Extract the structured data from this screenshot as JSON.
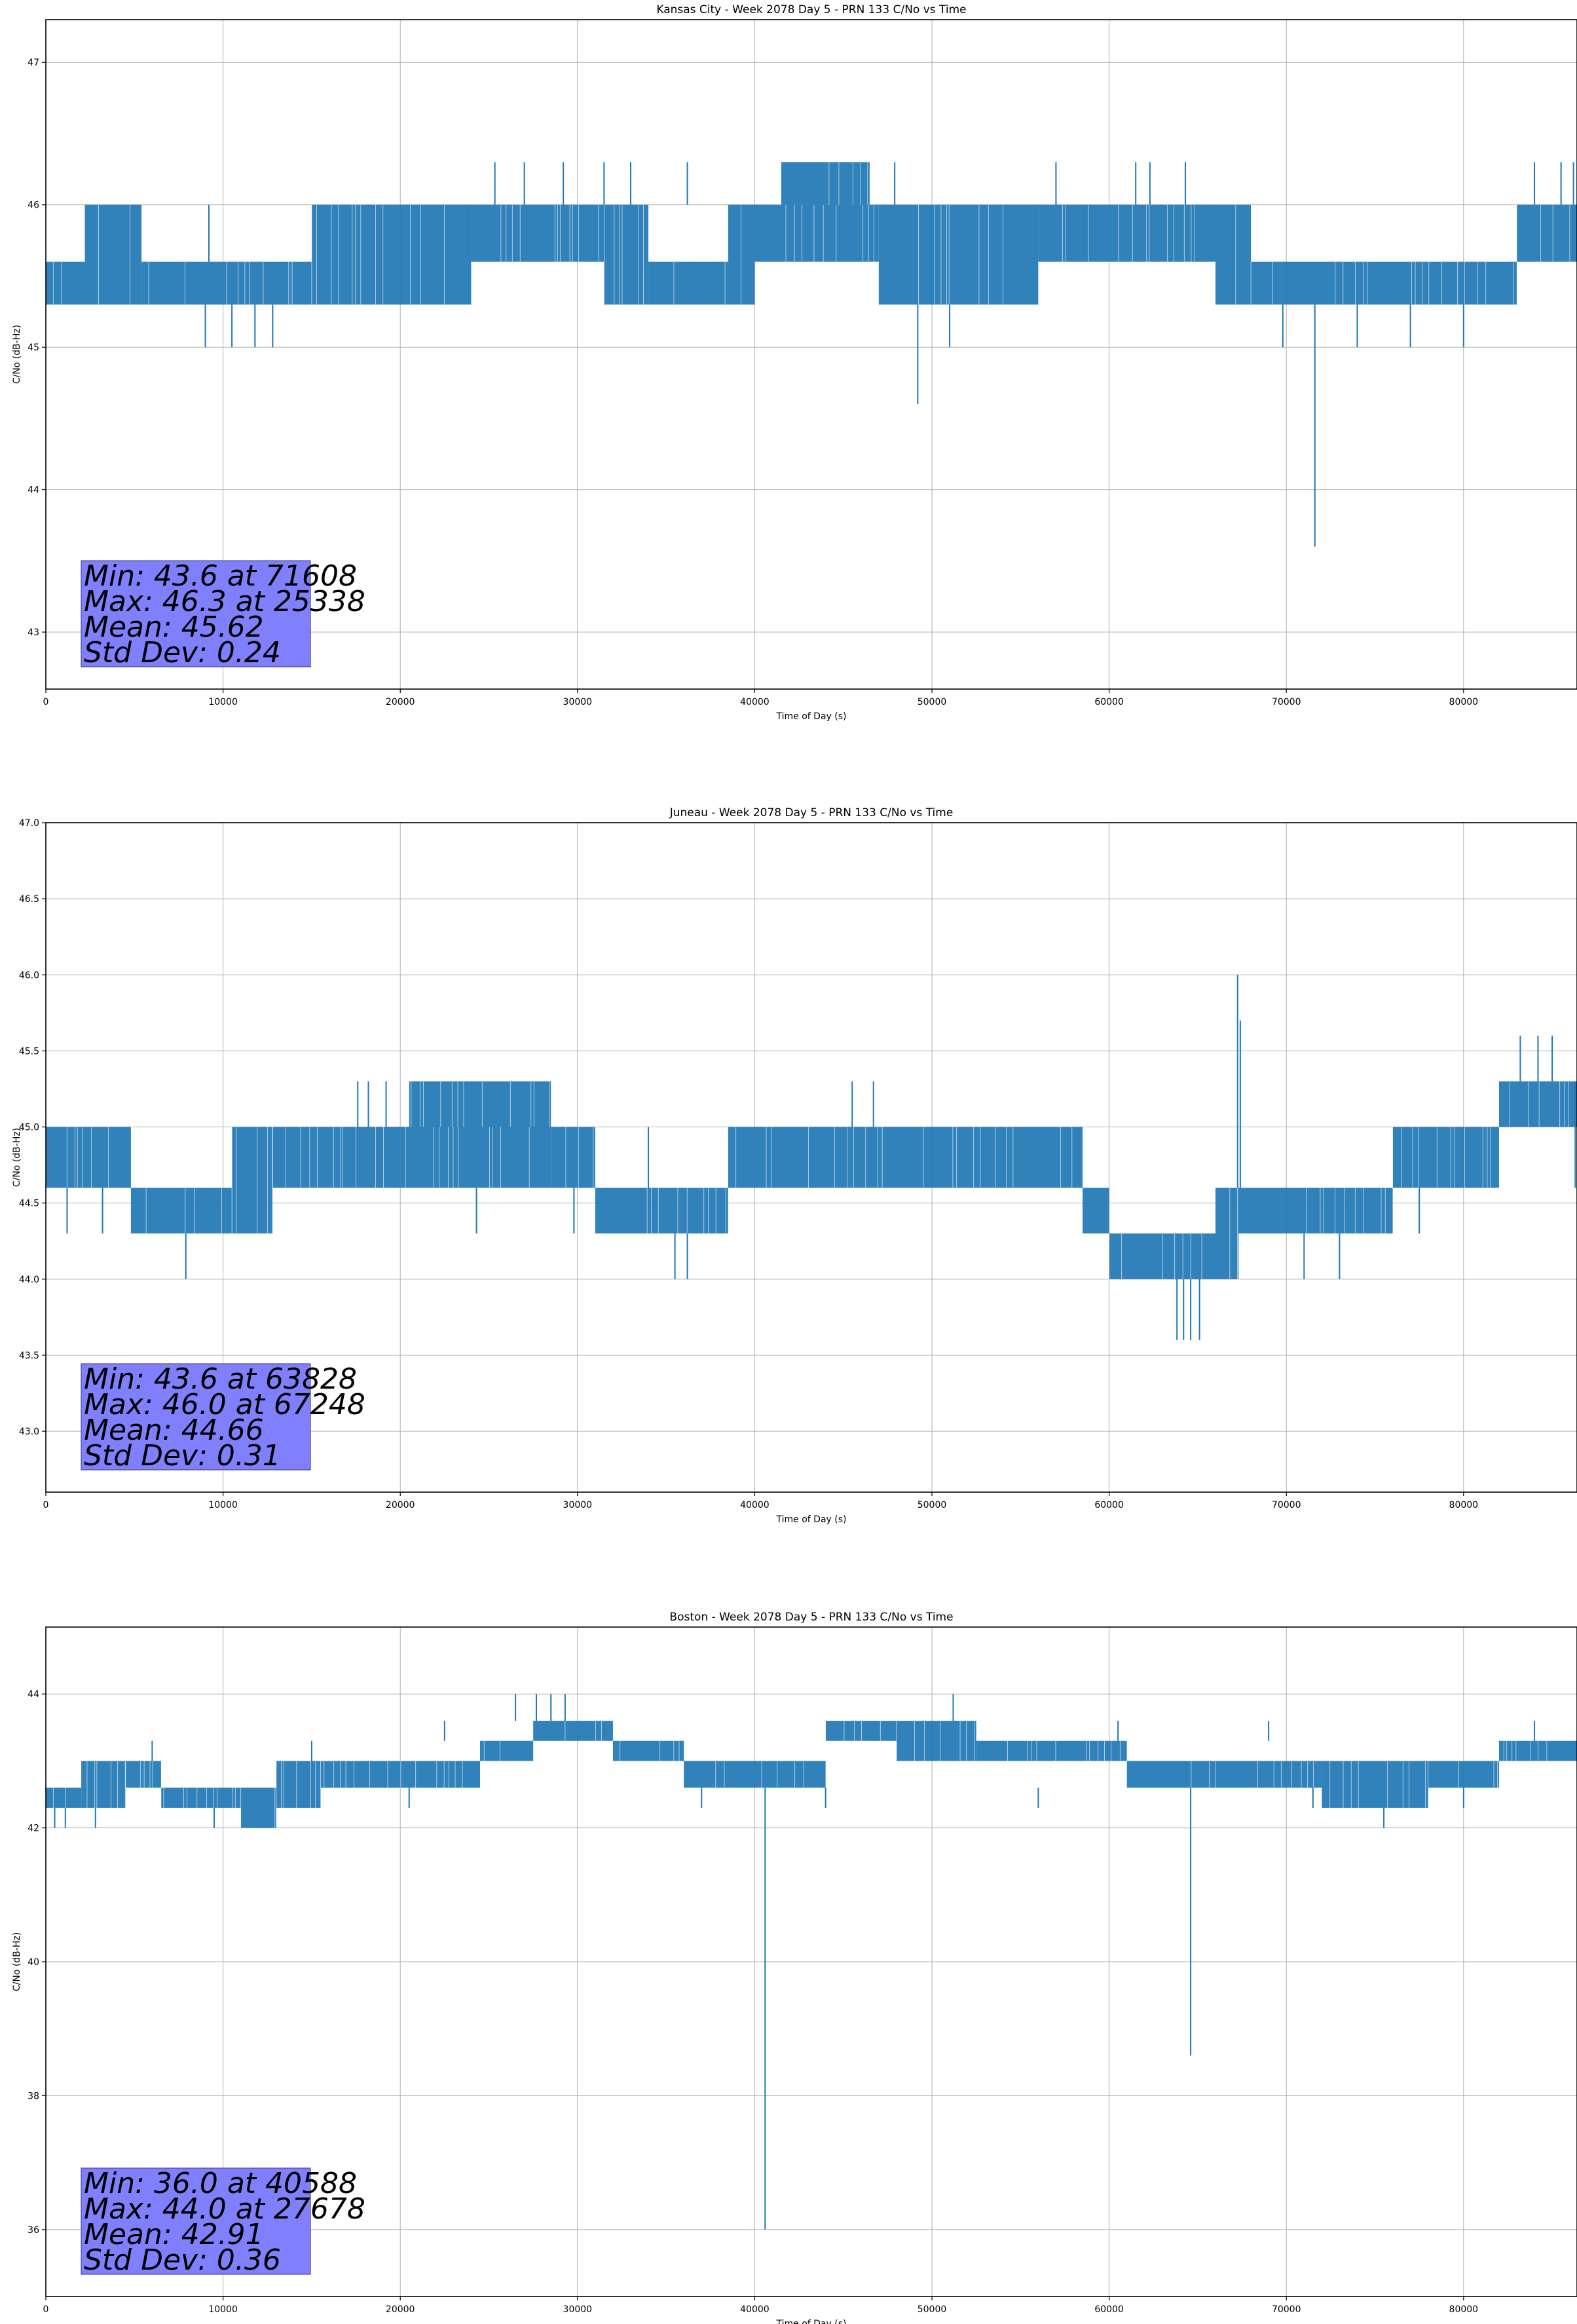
{
  "chart_data": [
    {
      "type": "line",
      "title": "Kansas City - Week 2078 Day 5 - PRN 133 C/No vs Time",
      "xlabel": "Time of Day (s)",
      "ylabel": "C/No (dB-Hz)",
      "xlim": [
        0,
        86400
      ],
      "ylim": [
        42.6,
        47.3
      ],
      "xticks": [
        "0",
        "10000",
        "20000",
        "30000",
        "40000",
        "50000",
        "60000",
        "70000",
        "80000"
      ],
      "yticks": [
        "43",
        "44",
        "45",
        "46",
        "47"
      ],
      "grid": true,
      "color": "#1f77b4",
      "stats": [
        "Min: 43.6 at 71608",
        "Max: 46.3 at 25338",
        "Mean: 45.62",
        "Std Dev: 0.24"
      ],
      "segments": [
        {
          "x0": 0,
          "x1": 2200,
          "lo": 45.3,
          "hi": 45.6
        },
        {
          "x0": 2200,
          "x1": 5400,
          "lo": 45.3,
          "hi": 46.0
        },
        {
          "x0": 5400,
          "x1": 15000,
          "lo": 45.3,
          "hi": 45.6
        },
        {
          "x0": 15000,
          "x1": 24000,
          "lo": 45.3,
          "hi": 46.0
        },
        {
          "x0": 24000,
          "x1": 31500,
          "lo": 45.6,
          "hi": 46.0
        },
        {
          "x0": 31500,
          "x1": 34000,
          "lo": 45.3,
          "hi": 46.0
        },
        {
          "x0": 34000,
          "x1": 38500,
          "lo": 45.3,
          "hi": 45.6
        },
        {
          "x0": 38500,
          "x1": 40000,
          "lo": 45.3,
          "hi": 46.0
        },
        {
          "x0": 40000,
          "x1": 47000,
          "lo": 45.6,
          "hi": 46.0
        },
        {
          "x0": 41500,
          "x1": 46500,
          "lo": 46.0,
          "hi": 46.3
        },
        {
          "x0": 47000,
          "x1": 50000,
          "lo": 45.3,
          "hi": 46.0
        },
        {
          "x0": 50000,
          "x1": 56000,
          "lo": 45.3,
          "hi": 46.0
        },
        {
          "x0": 56000,
          "x1": 66000,
          "lo": 45.6,
          "hi": 46.0
        },
        {
          "x0": 66000,
          "x1": 68000,
          "lo": 45.3,
          "hi": 46.0
        },
        {
          "x0": 68000,
          "x1": 75000,
          "lo": 45.3,
          "hi": 45.6
        },
        {
          "x0": 75000,
          "x1": 83000,
          "lo": 45.3,
          "hi": 45.6
        },
        {
          "x0": 83000,
          "x1": 86400,
          "lo": 45.6,
          "hi": 46.0
        }
      ],
      "spikes": [
        {
          "x": 9200,
          "lo": 45.6,
          "hi": 46.0
        },
        {
          "x": 9000,
          "lo": 45.0,
          "hi": 45.3
        },
        {
          "x": 10500,
          "lo": 45.0,
          "hi": 45.3
        },
        {
          "x": 11800,
          "lo": 45.0,
          "hi": 45.3
        },
        {
          "x": 12800,
          "lo": 45.0,
          "hi": 45.3
        },
        {
          "x": 25338,
          "lo": 46.0,
          "hi": 46.3
        },
        {
          "x": 27000,
          "lo": 46.0,
          "hi": 46.3
        },
        {
          "x": 29200,
          "lo": 46.0,
          "hi": 46.3
        },
        {
          "x": 31500,
          "lo": 46.0,
          "hi": 46.3
        },
        {
          "x": 33000,
          "lo": 46.0,
          "hi": 46.3
        },
        {
          "x": 36200,
          "lo": 46.0,
          "hi": 46.3
        },
        {
          "x": 47900,
          "lo": 46.0,
          "hi": 46.3
        },
        {
          "x": 49200,
          "lo": 44.6,
          "hi": 45.3
        },
        {
          "x": 51000,
          "lo": 45.0,
          "hi": 45.3
        },
        {
          "x": 57000,
          "lo": 46.0,
          "hi": 46.3
        },
        {
          "x": 61500,
          "lo": 46.0,
          "hi": 46.3
        },
        {
          "x": 62300,
          "lo": 46.0,
          "hi": 46.3
        },
        {
          "x": 64300,
          "lo": 46.0,
          "hi": 46.3
        },
        {
          "x": 69800,
          "lo": 45.0,
          "hi": 45.3
        },
        {
          "x": 71608,
          "lo": 43.6,
          "hi": 45.3
        },
        {
          "x": 74000,
          "lo": 45.0,
          "hi": 45.3
        },
        {
          "x": 77000,
          "lo": 45.0,
          "hi": 45.3
        },
        {
          "x": 80000,
          "lo": 45.0,
          "hi": 45.3
        },
        {
          "x": 84000,
          "lo": 46.0,
          "hi": 46.3
        },
        {
          "x": 85500,
          "lo": 46.0,
          "hi": 46.3
        },
        {
          "x": 86200,
          "lo": 46.0,
          "hi": 46.3
        }
      ]
    },
    {
      "type": "line",
      "title": "Juneau - Week 2078 Day 5 - PRN 133 C/No vs Time",
      "xlabel": "Time of Day (s)",
      "ylabel": "C/No (dB-Hz)",
      "xlim": [
        0,
        86400
      ],
      "ylim": [
        42.6,
        47.0
      ],
      "xticks": [
        "0",
        "10000",
        "20000",
        "30000",
        "40000",
        "50000",
        "60000",
        "70000",
        "80000"
      ],
      "yticks": [
        "43.0",
        "43.5",
        "44.0",
        "44.5",
        "45.0",
        "45.5",
        "46.0",
        "46.5",
        "47.0"
      ],
      "grid": true,
      "color": "#1f77b4",
      "stats": [
        "Min: 43.6 at 63828",
        "Max: 46.0 at 67248",
        "Mean: 44.66",
        "Std Dev: 0.31"
      ],
      "segments": [
        {
          "x0": 0,
          "x1": 4800,
          "lo": 44.6,
          "hi": 45.0
        },
        {
          "x0": 4800,
          "x1": 10500,
          "lo": 44.3,
          "hi": 44.6
        },
        {
          "x0": 10500,
          "x1": 12800,
          "lo": 44.3,
          "hi": 45.0
        },
        {
          "x0": 12800,
          "x1": 20000,
          "lo": 44.6,
          "hi": 45.0
        },
        {
          "x0": 20000,
          "x1": 28500,
          "lo": 44.6,
          "hi": 45.0
        },
        {
          "x0": 20500,
          "x1": 28500,
          "lo": 45.0,
          "hi": 45.3
        },
        {
          "x0": 28500,
          "x1": 31000,
          "lo": 44.6,
          "hi": 45.0
        },
        {
          "x0": 31000,
          "x1": 38500,
          "lo": 44.3,
          "hi": 44.6
        },
        {
          "x0": 38500,
          "x1": 50000,
          "lo": 44.6,
          "hi": 45.0
        },
        {
          "x0": 50000,
          "x1": 58500,
          "lo": 44.6,
          "hi": 45.0
        },
        {
          "x0": 58500,
          "x1": 60000,
          "lo": 44.3,
          "hi": 44.6
        },
        {
          "x0": 60000,
          "x1": 66000,
          "lo": 44.0,
          "hi": 44.3
        },
        {
          "x0": 66000,
          "x1": 67300,
          "lo": 44.0,
          "hi": 44.6
        },
        {
          "x0": 67300,
          "x1": 76000,
          "lo": 44.3,
          "hi": 44.6
        },
        {
          "x0": 76000,
          "x1": 82000,
          "lo": 44.6,
          "hi": 45.0
        },
        {
          "x0": 82000,
          "x1": 86400,
          "lo": 45.0,
          "hi": 45.3
        }
      ],
      "spikes": [
        {
          "x": 1200,
          "lo": 44.3,
          "hi": 44.6
        },
        {
          "x": 3200,
          "lo": 44.3,
          "hi": 44.6
        },
        {
          "x": 7900,
          "lo": 44.0,
          "hi": 44.3
        },
        {
          "x": 17600,
          "lo": 45.0,
          "hi": 45.3
        },
        {
          "x": 18200,
          "lo": 45.0,
          "hi": 45.3
        },
        {
          "x": 19200,
          "lo": 45.0,
          "hi": 45.3
        },
        {
          "x": 24300,
          "lo": 44.3,
          "hi": 44.6
        },
        {
          "x": 29800,
          "lo": 44.3,
          "hi": 44.6
        },
        {
          "x": 34000,
          "lo": 44.6,
          "hi": 45.0
        },
        {
          "x": 35500,
          "lo": 44.0,
          "hi": 44.3
        },
        {
          "x": 36200,
          "lo": 44.0,
          "hi": 44.3
        },
        {
          "x": 45500,
          "lo": 45.0,
          "hi": 45.3
        },
        {
          "x": 46700,
          "lo": 45.0,
          "hi": 45.3
        },
        {
          "x": 63828,
          "lo": 43.6,
          "hi": 44.0
        },
        {
          "x": 64200,
          "lo": 43.6,
          "hi": 44.0
        },
        {
          "x": 64600,
          "lo": 43.6,
          "hi": 44.0
        },
        {
          "x": 65100,
          "lo": 43.6,
          "hi": 44.0
        },
        {
          "x": 67248,
          "lo": 44.6,
          "hi": 46.0
        },
        {
          "x": 67400,
          "lo": 44.6,
          "hi": 45.7
        },
        {
          "x": 71000,
          "lo": 44.0,
          "hi": 44.3
        },
        {
          "x": 73000,
          "lo": 44.0,
          "hi": 44.3
        },
        {
          "x": 77500,
          "lo": 44.3,
          "hi": 44.6
        },
        {
          "x": 83200,
          "lo": 45.3,
          "hi": 45.6
        },
        {
          "x": 84200,
          "lo": 45.3,
          "hi": 45.6
        },
        {
          "x": 85000,
          "lo": 45.3,
          "hi": 45.6
        },
        {
          "x": 86300,
          "lo": 44.6,
          "hi": 45.3
        }
      ]
    },
    {
      "type": "line",
      "title": "Boston - Week 2078 Day 5 - PRN 133 C/No vs Time",
      "xlabel": "Time of Day (s)",
      "ylabel": "C/No (dB-Hz)",
      "xlim": [
        0,
        86400
      ],
      "ylim": [
        35.0,
        45.0
      ],
      "xticks": [
        "0",
        "10000",
        "20000",
        "30000",
        "40000",
        "50000",
        "60000",
        "70000",
        "80000"
      ],
      "yticks": [
        "36",
        "38",
        "40",
        "42",
        "44"
      ],
      "grid": true,
      "color": "#1f77b4",
      "stats": [
        "Min: 36.0 at 40588",
        "Max: 44.0 at 27678",
        "Mean: 42.91",
        "Std Dev: 0.36"
      ],
      "segments": [
        {
          "x0": 0,
          "x1": 2000,
          "lo": 42.3,
          "hi": 42.6
        },
        {
          "x0": 2000,
          "x1": 4500,
          "lo": 42.3,
          "hi": 43.0
        },
        {
          "x0": 4500,
          "x1": 6500,
          "lo": 42.6,
          "hi": 43.0
        },
        {
          "x0": 6500,
          "x1": 11000,
          "lo": 42.3,
          "hi": 42.6
        },
        {
          "x0": 11000,
          "x1": 13000,
          "lo": 42.0,
          "hi": 42.6
        },
        {
          "x0": 13000,
          "x1": 15500,
          "lo": 42.3,
          "hi": 43.0
        },
        {
          "x0": 15500,
          "x1": 24500,
          "lo": 42.6,
          "hi": 43.0
        },
        {
          "x0": 24500,
          "x1": 27500,
          "lo": 43.0,
          "hi": 43.3
        },
        {
          "x0": 27500,
          "x1": 32000,
          "lo": 43.3,
          "hi": 43.6
        },
        {
          "x0": 32000,
          "x1": 36000,
          "lo": 43.0,
          "hi": 43.3
        },
        {
          "x0": 36000,
          "x1": 44000,
          "lo": 42.6,
          "hi": 43.0
        },
        {
          "x0": 44000,
          "x1": 48000,
          "lo": 43.3,
          "hi": 43.6
        },
        {
          "x0": 48000,
          "x1": 52500,
          "lo": 43.0,
          "hi": 43.6
        },
        {
          "x0": 52500,
          "x1": 61000,
          "lo": 43.0,
          "hi": 43.3
        },
        {
          "x0": 61000,
          "x1": 66000,
          "lo": 42.6,
          "hi": 43.0
        },
        {
          "x0": 66000,
          "x1": 72000,
          "lo": 42.6,
          "hi": 43.0
        },
        {
          "x0": 72000,
          "x1": 78000,
          "lo": 42.3,
          "hi": 43.0
        },
        {
          "x0": 78000,
          "x1": 82000,
          "lo": 42.6,
          "hi": 43.0
        },
        {
          "x0": 82000,
          "x1": 86400,
          "lo": 43.0,
          "hi": 43.3
        }
      ],
      "spikes": [
        {
          "x": 500,
          "lo": 42.0,
          "hi": 42.3
        },
        {
          "x": 1100,
          "lo": 42.0,
          "hi": 42.3
        },
        {
          "x": 2800,
          "lo": 42.0,
          "hi": 42.3
        },
        {
          "x": 6000,
          "lo": 43.0,
          "hi": 43.3
        },
        {
          "x": 9500,
          "lo": 42.0,
          "hi": 42.3
        },
        {
          "x": 15000,
          "lo": 43.0,
          "hi": 43.3
        },
        {
          "x": 20500,
          "lo": 42.3,
          "hi": 42.6
        },
        {
          "x": 22500,
          "lo": 43.3,
          "hi": 43.6
        },
        {
          "x": 26500,
          "lo": 43.6,
          "hi": 44.0
        },
        {
          "x": 27678,
          "lo": 43.6,
          "hi": 44.0
        },
        {
          "x": 28500,
          "lo": 43.6,
          "hi": 44.0
        },
        {
          "x": 29300,
          "lo": 43.6,
          "hi": 44.0
        },
        {
          "x": 37000,
          "lo": 42.3,
          "hi": 42.6
        },
        {
          "x": 40588,
          "lo": 36.0,
          "hi": 42.6
        },
        {
          "x": 44000,
          "lo": 42.3,
          "hi": 42.6
        },
        {
          "x": 51200,
          "lo": 43.6,
          "hi": 44.0
        },
        {
          "x": 56000,
          "lo": 42.3,
          "hi": 42.6
        },
        {
          "x": 60500,
          "lo": 43.3,
          "hi": 43.6
        },
        {
          "x": 64600,
          "lo": 38.6,
          "hi": 42.6
        },
        {
          "x": 69000,
          "lo": 43.3,
          "hi": 43.6
        },
        {
          "x": 71500,
          "lo": 42.3,
          "hi": 42.6
        },
        {
          "x": 75500,
          "lo": 42.0,
          "hi": 42.3
        },
        {
          "x": 80000,
          "lo": 42.3,
          "hi": 42.6
        },
        {
          "x": 84000,
          "lo": 43.3,
          "hi": 43.6
        }
      ]
    }
  ]
}
